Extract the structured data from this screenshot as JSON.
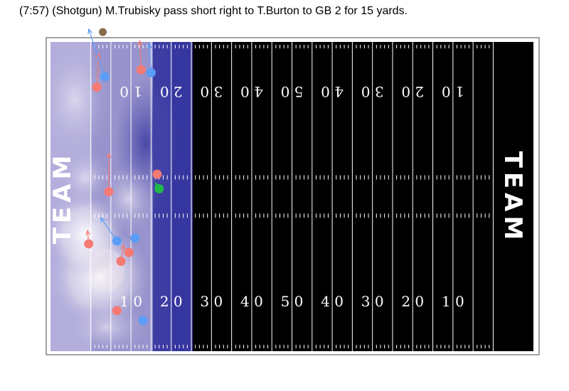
{
  "caption": "(7:57) (Shotgun) M.Trubisky pass short right to T.Burton to GB 2 for 15 yards.",
  "chart_data": {
    "type": "scatter",
    "title": "(7:57) (Shotgun) M.Trubisky pass short right to T.Burton to GB 2 for 15 yards.",
    "x_range": [
      -10,
      110
    ],
    "y_range": [
      0,
      53.3
    ],
    "endzone_labels": [
      "TEAM",
      "TEAM"
    ],
    "yard_numbers": [
      "10",
      "20",
      "30",
      "40",
      "50",
      "40",
      "30",
      "20",
      "10"
    ],
    "colors": {
      "offense": "#f47a73",
      "defense": "#5b9cf5",
      "football": "#1fb84a",
      "official": "#8a6a4a",
      "field": "#000000",
      "shaded_zone": "#3d3fa8",
      "lines": "#ffffff"
    },
    "line_of_scrimmage": 17,
    "series": [
      {
        "name": "",
        "color": "#f47a73",
        "points": [
          {
            "x": 12.5,
            "y": 48.5,
            "dx": -0.3,
            "dy": 5.0
          },
          {
            "x": 1.5,
            "y": 45.5,
            "dx": 0.5,
            "dy": 5.8
          },
          {
            "x": 16.5,
            "y": 30.5,
            "dx": 0.0,
            "dy": 0.0
          },
          {
            "x": 4.5,
            "y": 27.5,
            "dx": 0.0,
            "dy": 6.6
          },
          {
            "x": 9.5,
            "y": 17.0,
            "dx": 1.0,
            "dy": 0.5
          },
          {
            "x": -0.5,
            "y": 18.5,
            "dx": -0.3,
            "dy": 2.3
          },
          {
            "x": 7.5,
            "y": 15.5,
            "dx": 0.7,
            "dy": 2.8
          },
          {
            "x": 6.5,
            "y": 7.0,
            "dx": 0.0,
            "dy": 0.0
          }
        ]
      },
      {
        "name": "",
        "color": "#5b9cf5",
        "points": [
          {
            "x": 15.0,
            "y": 48.0,
            "dx": -0.5,
            "dy": 5.0
          },
          {
            "x": 3.5,
            "y": 47.3,
            "dx": -4.0,
            "dy": 8.2
          },
          {
            "x": 6.5,
            "y": 19.0,
            "dx": -4.0,
            "dy": 4.0
          },
          {
            "x": 11.0,
            "y": 19.5,
            "dx": 0.5,
            "dy": 0.5
          },
          {
            "x": 13.0,
            "y": 5.3,
            "dx": 0.0,
            "dy": 0.0
          }
        ]
      },
      {
        "name": "",
        "color": "#1fb84a",
        "points": [
          {
            "x": 17.0,
            "y": 28.0,
            "dx": -1.0,
            "dy": 1.0
          }
        ]
      },
      {
        "name": "",
        "color": "#8a6a4a",
        "points": [
          {
            "x": 3.0,
            "y": 55.0,
            "dx": 0.0,
            "dy": 0.0
          }
        ]
      }
    ]
  }
}
